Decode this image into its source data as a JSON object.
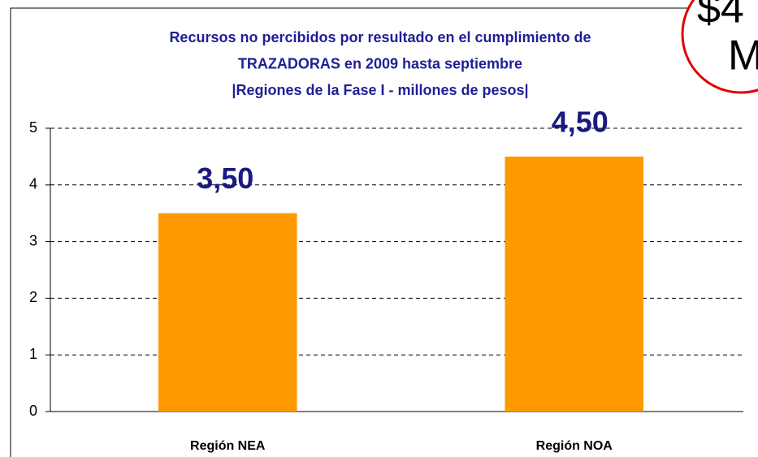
{
  "chart_data": {
    "type": "bar",
    "title": [
      "Recursos no percibidos por resultado en el cumplimiento de",
      "TRAZADORAS en 2009 hasta septiembre",
      "|Regiones de la Fase I - millones de pesos|"
    ],
    "categories": [
      "Región NEA",
      "Región NOA"
    ],
    "values": [
      3.5,
      4.5
    ],
    "value_labels": [
      "3,50",
      "4,50"
    ],
    "color": "#ff9900",
    "ylim": [
      0,
      5
    ],
    "yticks": [
      0,
      1,
      2,
      3,
      4,
      5
    ],
    "grid": true,
    "annotations": [
      "$4",
      "M"
    ]
  }
}
